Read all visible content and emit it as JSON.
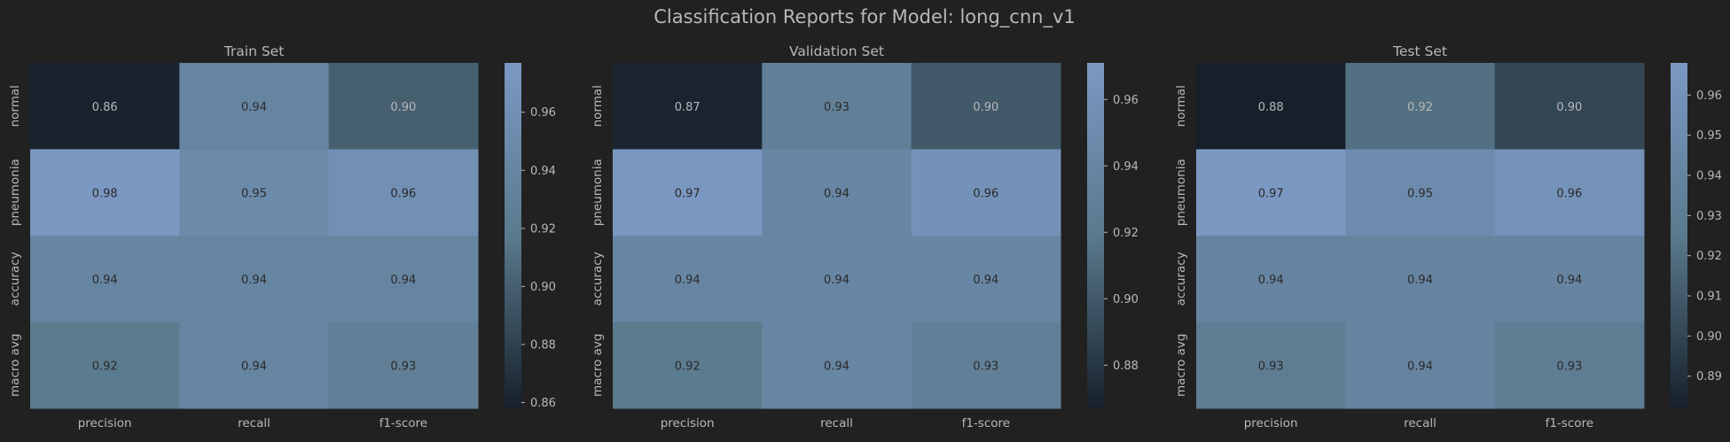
{
  "title": "Classification Reports for Model: long_cnn_v1",
  "colors": {
    "background": "#212121",
    "text": "#b8b8b8",
    "cell_text": "#2a2a2a",
    "colormap_low": "#16202b",
    "colormap_mid": "#5a7a8d",
    "colormap_high": "#7b98c3"
  },
  "chart_data": [
    {
      "type": "heatmap",
      "title": "Train Set",
      "rows": [
        "normal",
        "pneumonia",
        "accuracy",
        "macro avg"
      ],
      "columns": [
        "precision",
        "recall",
        "f1-score"
      ],
      "values": [
        [
          0.86,
          0.94,
          0.9
        ],
        [
          0.98,
          0.95,
          0.96
        ],
        [
          0.94,
          0.94,
          0.94
        ],
        [
          0.92,
          0.94,
          0.93
        ]
      ],
      "value_labels": [
        [
          "0.86",
          "0.94",
          "0.90"
        ],
        [
          "0.98",
          "0.95",
          "0.96"
        ],
        [
          "0.94",
          "0.94",
          "0.94"
        ],
        [
          "0.92",
          "0.94",
          "0.93"
        ]
      ],
      "colorbar": {
        "range": [
          0.858,
          0.977
        ],
        "ticks": [
          "0.86",
          "0.88",
          "0.90",
          "0.92",
          "0.94",
          "0.96"
        ]
      }
    },
    {
      "type": "heatmap",
      "title": "Validation Set",
      "rows": [
        "normal",
        "pneumonia",
        "accuracy",
        "macro avg"
      ],
      "columns": [
        "precision",
        "recall",
        "f1-score"
      ],
      "values": [
        [
          0.87,
          0.93,
          0.9
        ],
        [
          0.97,
          0.94,
          0.96
        ],
        [
          0.94,
          0.94,
          0.94
        ],
        [
          0.92,
          0.94,
          0.93
        ]
      ],
      "value_labels": [
        [
          "0.87",
          "0.93",
          "0.90"
        ],
        [
          "0.97",
          "0.94",
          "0.96"
        ],
        [
          "0.94",
          "0.94",
          "0.94"
        ],
        [
          "0.92",
          "0.94",
          "0.93"
        ]
      ],
      "colorbar": {
        "range": [
          0.867,
          0.971
        ],
        "ticks": [
          "0.88",
          "0.90",
          "0.92",
          "0.94",
          "0.96"
        ]
      }
    },
    {
      "type": "heatmap",
      "title": "Test Set",
      "rows": [
        "normal",
        "pneumonia",
        "accuracy",
        "macro avg"
      ],
      "columns": [
        "precision",
        "recall",
        "f1-score"
      ],
      "values": [
        [
          0.88,
          0.92,
          0.9
        ],
        [
          0.97,
          0.95,
          0.96
        ],
        [
          0.94,
          0.94,
          0.94
        ],
        [
          0.93,
          0.94,
          0.93
        ]
      ],
      "value_labels": [
        [
          "0.88",
          "0.92",
          "0.90"
        ],
        [
          "0.97",
          "0.95",
          "0.96"
        ],
        [
          "0.94",
          "0.94",
          "0.94"
        ],
        [
          "0.93",
          "0.94",
          "0.93"
        ]
      ],
      "colorbar": {
        "range": [
          0.882,
          0.968
        ],
        "ticks": [
          "0.89",
          "0.90",
          "0.91",
          "0.92",
          "0.93",
          "0.94",
          "0.95",
          "0.96"
        ]
      }
    }
  ]
}
